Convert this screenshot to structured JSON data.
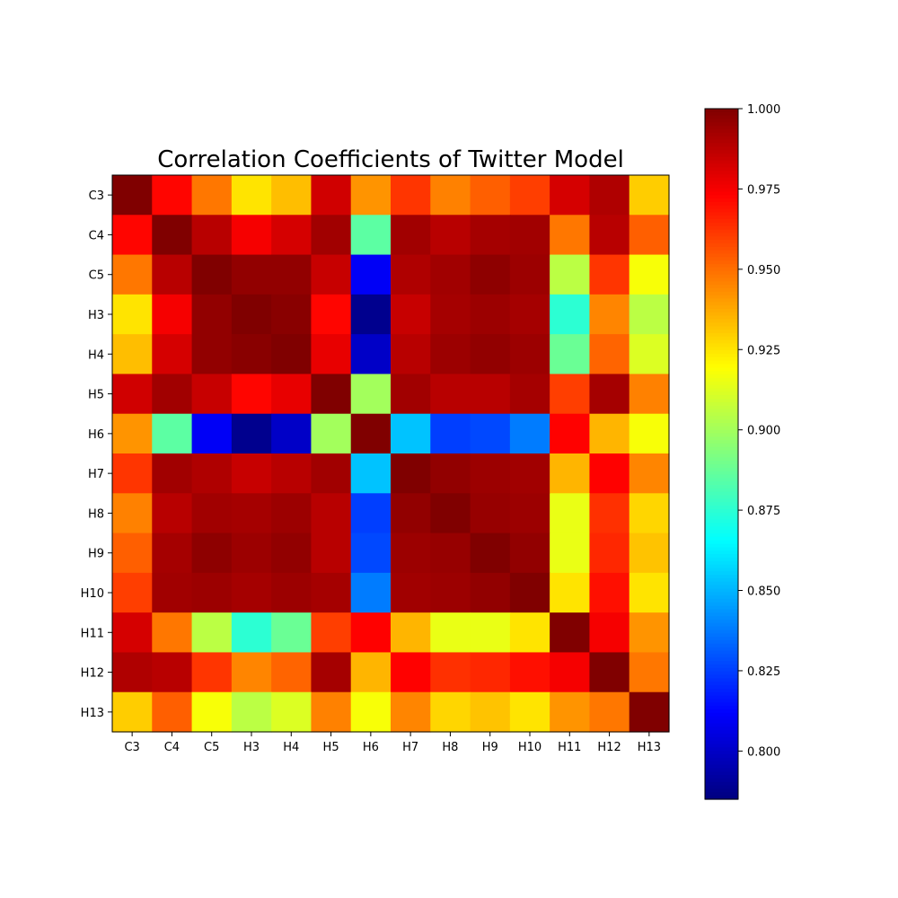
{
  "chart_data": {
    "type": "heatmap",
    "title": "Correlation Coefficients of Twitter Model",
    "xlabel": "",
    "ylabel": "",
    "labels": [
      "C3",
      "C4",
      "C5",
      "H3",
      "H4",
      "H5",
      "H6",
      "H7",
      "H8",
      "H9",
      "H10",
      "H11",
      "H12",
      "H13"
    ],
    "matrix": [
      [
        1.0,
        0.972,
        0.948,
        0.925,
        0.933,
        0.983,
        0.942,
        0.962,
        0.946,
        0.953,
        0.96,
        0.982,
        0.99,
        0.93
      ],
      [
        0.972,
        1.0,
        0.988,
        0.975,
        0.982,
        0.993,
        0.885,
        0.993,
        0.988,
        0.992,
        0.993,
        0.948,
        0.988,
        0.953
      ],
      [
        0.948,
        0.988,
        1.0,
        0.996,
        0.996,
        0.985,
        0.81,
        0.99,
        0.993,
        0.997,
        0.994,
        0.905,
        0.962,
        0.918
      ],
      [
        0.925,
        0.975,
        0.996,
        1.0,
        0.998,
        0.972,
        0.788,
        0.985,
        0.992,
        0.994,
        0.992,
        0.875,
        0.945,
        0.905
      ],
      [
        0.933,
        0.982,
        0.996,
        0.998,
        1.0,
        0.978,
        0.8,
        0.988,
        0.994,
        0.996,
        0.994,
        0.888,
        0.952,
        0.912
      ],
      [
        0.983,
        0.993,
        0.985,
        0.972,
        0.978,
        1.0,
        0.9,
        0.993,
        0.988,
        0.988,
        0.992,
        0.96,
        0.992,
        0.946
      ],
      [
        0.942,
        0.885,
        0.81,
        0.788,
        0.8,
        0.9,
        1.0,
        0.853,
        0.825,
        0.827,
        0.838,
        0.973,
        0.935,
        0.918
      ],
      [
        0.962,
        0.993,
        0.99,
        0.985,
        0.988,
        0.993,
        0.853,
        1.0,
        0.996,
        0.994,
        0.993,
        0.935,
        0.973,
        0.945
      ],
      [
        0.946,
        0.988,
        0.993,
        0.992,
        0.994,
        0.988,
        0.825,
        0.996,
        1.0,
        0.995,
        0.994,
        0.915,
        0.963,
        0.928
      ],
      [
        0.953,
        0.992,
        0.997,
        0.994,
        0.996,
        0.988,
        0.827,
        0.994,
        0.995,
        1.0,
        0.996,
        0.915,
        0.965,
        0.932
      ],
      [
        0.96,
        0.993,
        0.994,
        0.992,
        0.994,
        0.992,
        0.838,
        0.993,
        0.994,
        0.996,
        1.0,
        0.925,
        0.97,
        0.925
      ],
      [
        0.982,
        0.948,
        0.905,
        0.875,
        0.888,
        0.96,
        0.973,
        0.935,
        0.915,
        0.915,
        0.925,
        1.0,
        0.975,
        0.942
      ],
      [
        0.99,
        0.988,
        0.962,
        0.945,
        0.952,
        0.992,
        0.935,
        0.973,
        0.963,
        0.965,
        0.97,
        0.975,
        1.0,
        0.948
      ],
      [
        0.93,
        0.953,
        0.918,
        0.905,
        0.912,
        0.946,
        0.918,
        0.945,
        0.928,
        0.932,
        0.925,
        0.942,
        0.948,
        1.0
      ]
    ],
    "colorbar": {
      "min": 0.785,
      "max": 1.0,
      "ticks": [
        0.8,
        0.825,
        0.85,
        0.875,
        0.9,
        0.925,
        0.95,
        0.975,
        1.0
      ],
      "tick_labels": [
        "0.800",
        "0.825",
        "0.850",
        "0.875",
        "0.900",
        "0.925",
        "0.950",
        "0.975",
        "1.000"
      ]
    },
    "colormap": "jet",
    "grid": false
  }
}
